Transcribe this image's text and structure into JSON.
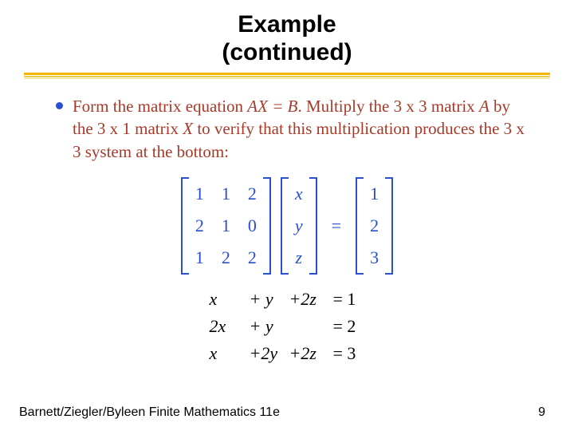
{
  "title": {
    "line1": "Example",
    "line2": "(continued)"
  },
  "body_text": {
    "pre1": "Form the matrix equation ",
    "ax": "AX = B",
    "post1": ". Multiply the 3 x 3 matrix ",
    "a": "A",
    "post2": " by the 3 x 1 matrix ",
    "x": "X",
    "post3": " to verify that this multiplication produces the 3 x 3 system at the bottom:"
  },
  "colors": {
    "body_text": "#a63a29",
    "math": "#2a4fd0",
    "system": "#000000",
    "title": "#000000"
  },
  "equation": {
    "A": {
      "rows": [
        [
          "1",
          "1",
          "2"
        ],
        [
          "2",
          "1",
          "0"
        ],
        [
          "1",
          "2",
          "2"
        ]
      ]
    },
    "X": {
      "rows": [
        [
          "x"
        ],
        [
          "y"
        ],
        [
          "z"
        ]
      ]
    },
    "B": {
      "rows": [
        [
          "1"
        ],
        [
          "2"
        ],
        [
          "3"
        ]
      ]
    },
    "eq": "="
  },
  "system": {
    "rows": [
      [
        "x",
        "+ y",
        "+2z",
        "= 1"
      ],
      [
        "2x",
        "+ y",
        "",
        "= 2"
      ],
      [
        "x",
        "+2y",
        "+2z",
        "= 3"
      ]
    ]
  },
  "footer": "Barnett/Ziegler/Byleen Finite Mathematics 11e",
  "page": "9",
  "style": {
    "title_fontsize": 30,
    "body_fontsize": 21,
    "math_fontsize": 22,
    "footer_fontsize": 16,
    "divider_colors": [
      "#f2b800",
      "#f2c94c",
      "#f7e08e"
    ]
  }
}
